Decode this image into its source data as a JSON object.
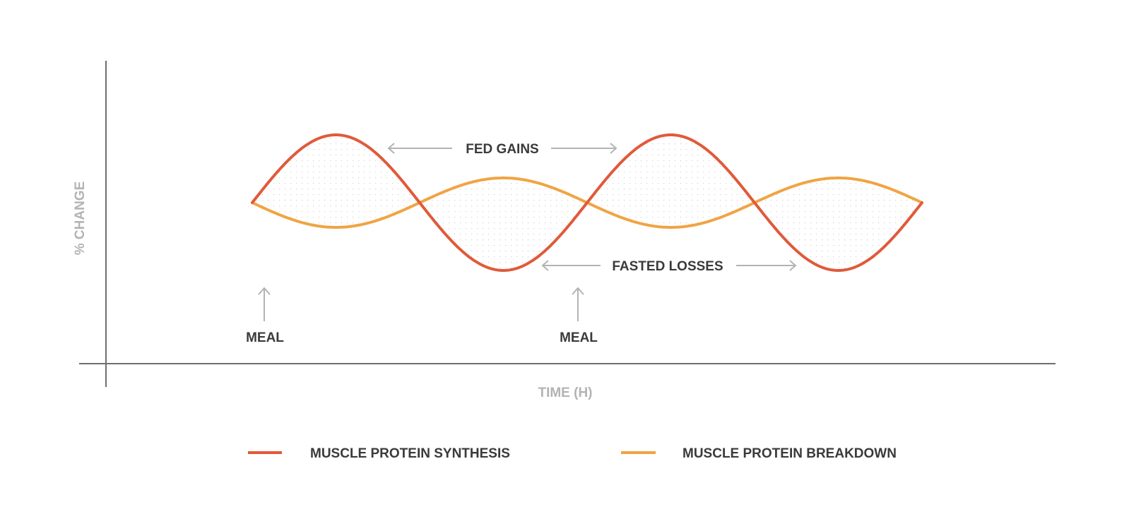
{
  "axes": {
    "y_label": "% CHANGE",
    "x_label": "TIME (H)"
  },
  "annotations": {
    "fed_gains": "FED GAINS",
    "fasted_losses": "FASTED LOSSES",
    "meals": [
      "MEAL",
      "MEAL"
    ]
  },
  "legend": {
    "synthesis": "MUSCLE PROTEIN SYNTHESIS",
    "breakdown": "MUSCLE PROTEIN BREAKDOWN"
  },
  "colors": {
    "synthesis": "#e05a3a",
    "breakdown": "#f0a444",
    "axis": "#6e6e6e",
    "annotation": "#b3b3b3",
    "text": "#3a3a3a"
  },
  "chart_data": {
    "type": "line",
    "xlabel": "TIME (H)",
    "ylabel": "% CHANGE",
    "series": [
      {
        "name": "MUSCLE PROTEIN SYNTHESIS",
        "shape": "sine",
        "cycles": 2,
        "amplitude": 1.0,
        "phase": "peaks shortly after each meal"
      },
      {
        "name": "MUSCLE PROTEIN BREAKDOWN",
        "shape": "sine",
        "cycles": 2,
        "amplitude": 0.36,
        "phase": "opposite to synthesis"
      }
    ],
    "regions": [
      "FED GAINS",
      "FASTED LOSSES"
    ],
    "markers": [
      "MEAL",
      "MEAL"
    ],
    "grid": false
  }
}
